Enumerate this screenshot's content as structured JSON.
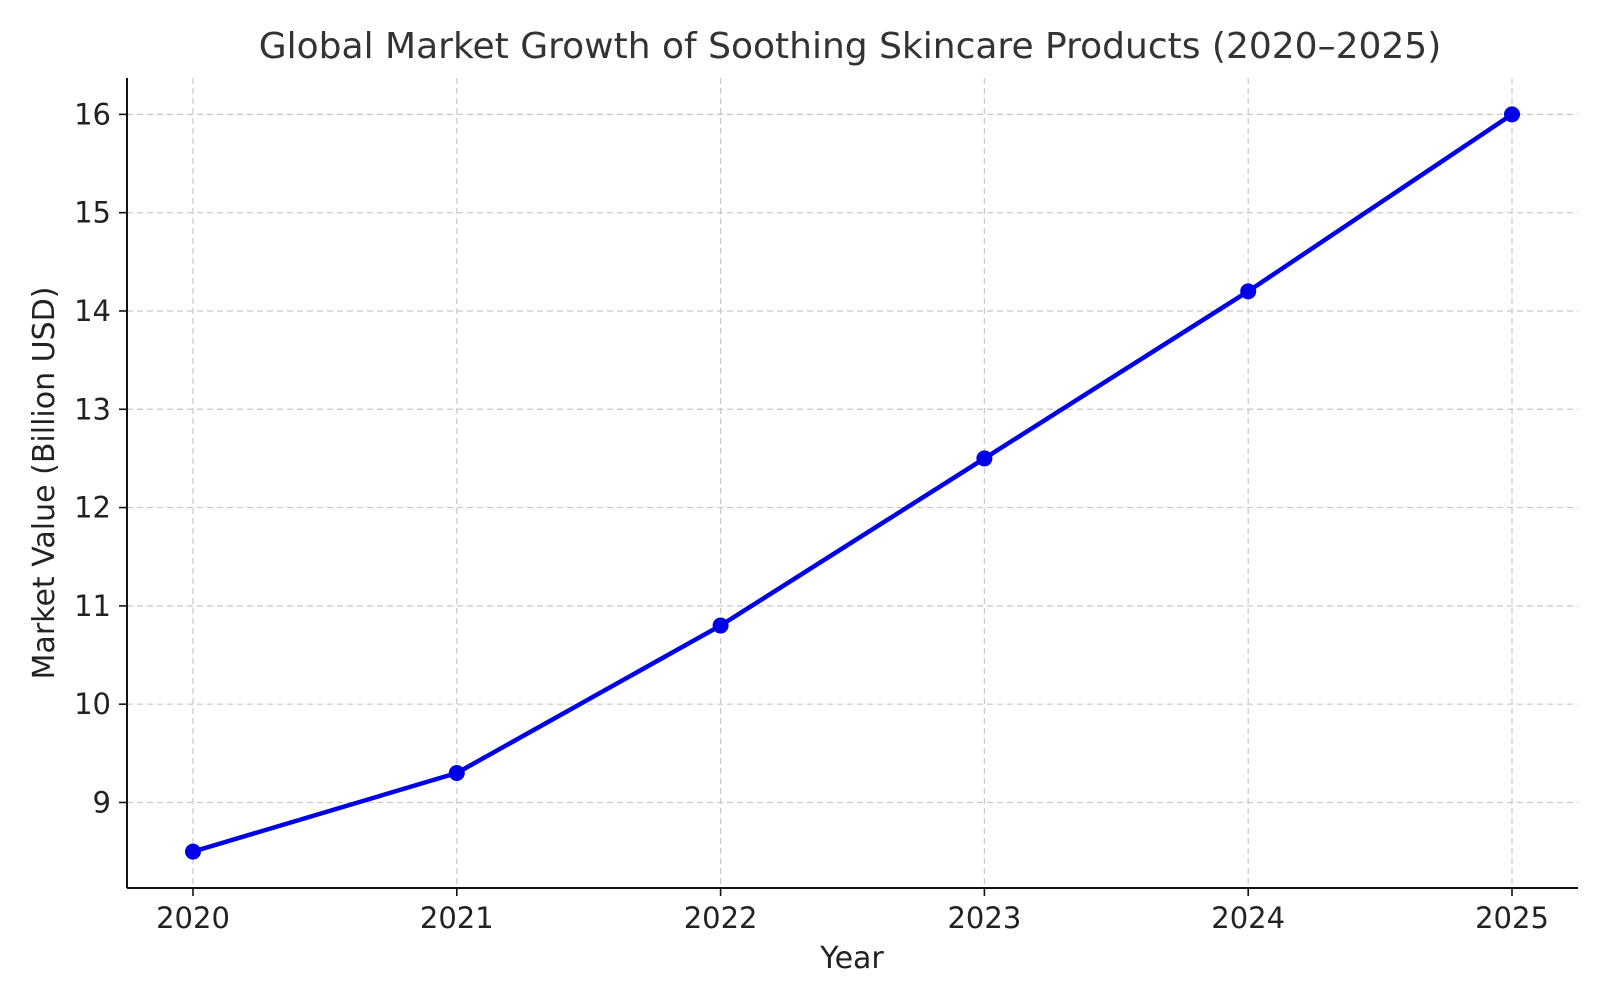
{
  "chart_data": {
    "type": "line",
    "title": "Global Market Growth of Soothing Skincare Products (2020–2025)",
    "xlabel": "Year",
    "ylabel": "Market Value (Billion USD)",
    "categories": [
      "2020",
      "2021",
      "2022",
      "2023",
      "2024",
      "2025"
    ],
    "series": [
      {
        "values": [
          8.5,
          9.3,
          10.8,
          12.5,
          14.2,
          16.0
        ],
        "color": "#0000e6",
        "marker": "circle"
      }
    ],
    "yticks": [
      9,
      10,
      11,
      12,
      13,
      14,
      15,
      16
    ],
    "ylim": [
      8.13,
      16.37
    ],
    "grid": true,
    "grid_style": "dashed"
  }
}
